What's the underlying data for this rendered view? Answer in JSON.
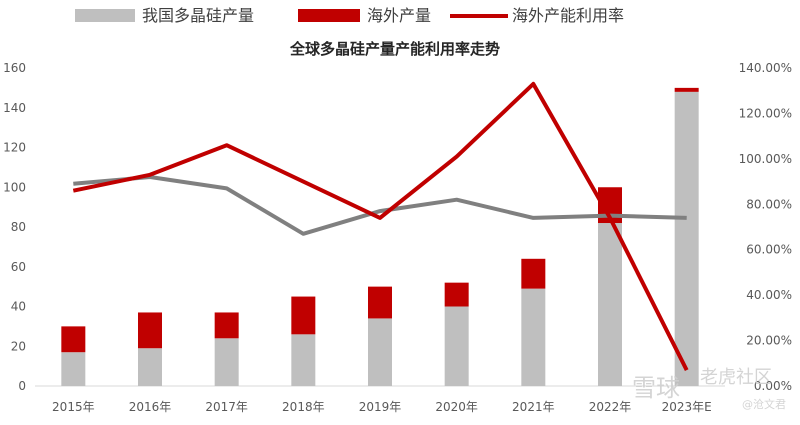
{
  "chart_data": {
    "type": "bar",
    "title": "全球多晶硅产量产能利用率走势",
    "categories": [
      "2015年",
      "2016年",
      "2017年",
      "2018年",
      "2019年",
      "2020年",
      "2021年",
      "2022年",
      "2023年E"
    ],
    "series": [
      {
        "name": "我国多晶硅产量",
        "kind": "stacked-bar",
        "axis": "left",
        "values": [
          17,
          19,
          24,
          26,
          34,
          40,
          49,
          82,
          148
        ],
        "color": "#bfbfbf"
      },
      {
        "name": "海外产量",
        "kind": "stacked-bar",
        "axis": "left",
        "values": [
          13,
          18,
          13,
          19,
          16,
          12,
          15,
          18,
          2
        ],
        "color": "#c00000"
      },
      {
        "name": "海外产能利用率",
        "kind": "line",
        "axis": "right",
        "values": [
          86,
          93,
          106,
          90,
          74,
          101,
          133,
          74,
          7
        ],
        "color": "#c00000"
      },
      {
        "name": "",
        "kind": "line",
        "axis": "right",
        "values": [
          89,
          92,
          87,
          67,
          77,
          82,
          74,
          75,
          74
        ],
        "color": "#808080"
      }
    ],
    "y_left": {
      "min": 0,
      "max": 160,
      "ticks": [
        0,
        20,
        40,
        60,
        80,
        100,
        120,
        140,
        160
      ]
    },
    "y_right": {
      "min": 0,
      "max": 140,
      "ticks": [
        "0.00%",
        "20.00%",
        "40.00%",
        "60.00%",
        "80.00%",
        "100.00%",
        "120.00%",
        "140.00%"
      ]
    },
    "legend_position": "top",
    "grid": false
  },
  "watermark": {
    "brand": "雪球",
    "sub": "老虎社区",
    "user": "@沧文君"
  }
}
